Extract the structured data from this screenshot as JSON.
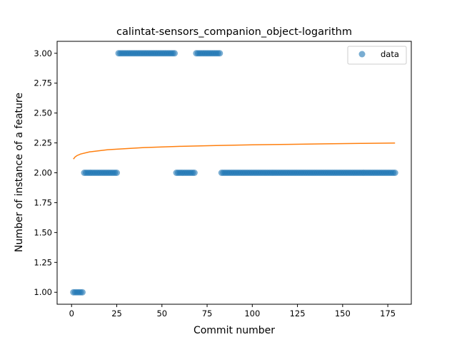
{
  "chart_data": {
    "type": "scatter",
    "title": "calintat-sensors_companion_object-logarithm",
    "xlabel": "Commit number",
    "ylabel": "Number of instance of a feature",
    "xlim": [
      -8,
      188
    ],
    "ylim": [
      0.9,
      3.1
    ],
    "x_ticks": [
      "0",
      "25",
      "50",
      "75",
      "100",
      "125",
      "150",
      "175"
    ],
    "y_ticks": [
      "1.00",
      "1.25",
      "1.50",
      "1.75",
      "2.00",
      "2.25",
      "2.50",
      "2.75",
      "3.00"
    ],
    "grid": false,
    "legend": {
      "position": "top-right",
      "entries": [
        "data"
      ]
    },
    "colors": {
      "data": "#1f77b4",
      "fit": "#ff7f0e"
    },
    "series": [
      {
        "name": "data",
        "kind": "scatter",
        "segments": [
          {
            "x_start": 1,
            "x_end": 6,
            "y": 1
          },
          {
            "x_start": 7,
            "x_end": 25,
            "y": 2
          },
          {
            "x_start": 26,
            "x_end": 57,
            "y": 3
          },
          {
            "x_start": 58,
            "x_end": 68,
            "y": 2
          },
          {
            "x_start": 69,
            "x_end": 82,
            "y": 3
          },
          {
            "x_start": 83,
            "x_end": 179,
            "y": 2
          }
        ]
      },
      {
        "kind": "line",
        "x": [
          1,
          2,
          3,
          5,
          10,
          20,
          40,
          60,
          80,
          100,
          120,
          140,
          160,
          179
        ],
        "y": [
          2.115,
          2.133,
          2.144,
          2.157,
          2.175,
          2.193,
          2.211,
          2.221,
          2.228,
          2.234,
          2.238,
          2.242,
          2.246,
          2.249
        ]
      }
    ]
  }
}
